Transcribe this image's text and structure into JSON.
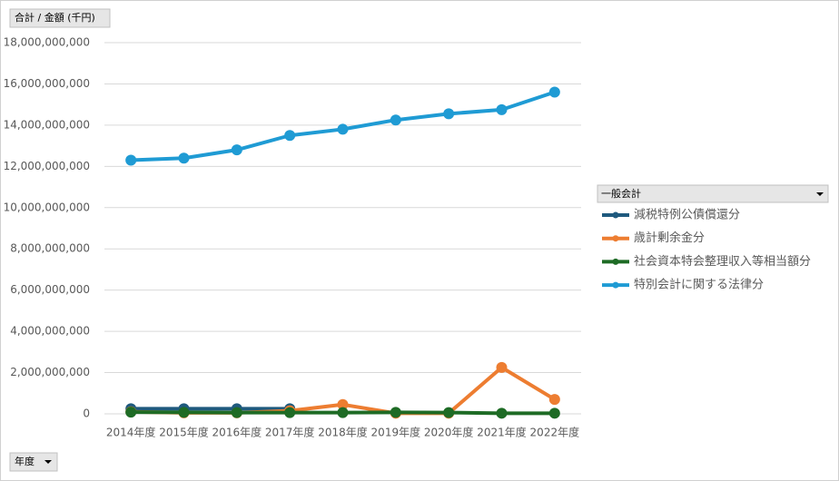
{
  "chart_data": {
    "type": "line",
    "value_button": "合計 / 金額 (千円)",
    "axis_button": "年度",
    "legend_title": "一般会計",
    "legend": "right",
    "grid": true,
    "categories": [
      "2014年度",
      "2015年度",
      "2016年度",
      "2017年度",
      "2018年度",
      "2019年度",
      "2020年度",
      "2021年度",
      "2022年度"
    ],
    "ylim": [
      0,
      18000000000
    ],
    "yticks": [
      0,
      {
        "value": 2000000000,
        "label": "2,000,000,000"
      },
      {
        "value": 4000000000,
        "label": "4,000,000,000"
      },
      {
        "value": 6000000000,
        "label": "6,000,000,000"
      },
      {
        "value": 8000000000,
        "label": "8,000,000,000"
      },
      {
        "value": 10000000000,
        "label": "10,000,000,000"
      },
      {
        "value": 12000000000,
        "label": "12,000,000,000"
      },
      {
        "value": 14000000000,
        "label": "14,000,000,000"
      },
      {
        "value": 16000000000,
        "label": "16,000,000,000"
      },
      {
        "value": 18000000000,
        "label": "18,000,000,000"
      }
    ],
    "series": [
      {
        "name": "減税特例公債償還分",
        "color": "#1f5a7e",
        "values": [
          250000000,
          250000000,
          250000000,
          250000000,
          null,
          null,
          null,
          null,
          null
        ]
      },
      {
        "name": "歳計剰余金分",
        "color": "#ed7d31",
        "values": [
          100000000,
          50000000,
          50000000,
          150000000,
          450000000,
          30000000,
          30000000,
          2250000000,
          700000000
        ]
      },
      {
        "name": "社会資本特会整理収入等相当額分",
        "color": "#1e6b25",
        "values": [
          80000000,
          70000000,
          60000000,
          60000000,
          60000000,
          70000000,
          60000000,
          30000000,
          30000000
        ]
      },
      {
        "name": "特別会計に関する法律分",
        "color": "#1f9bd4",
        "values": [
          12300000000,
          12400000000,
          12800000000,
          13500000000,
          13800000000,
          14250000000,
          14550000000,
          14750000000,
          15600000000
        ]
      }
    ]
  }
}
